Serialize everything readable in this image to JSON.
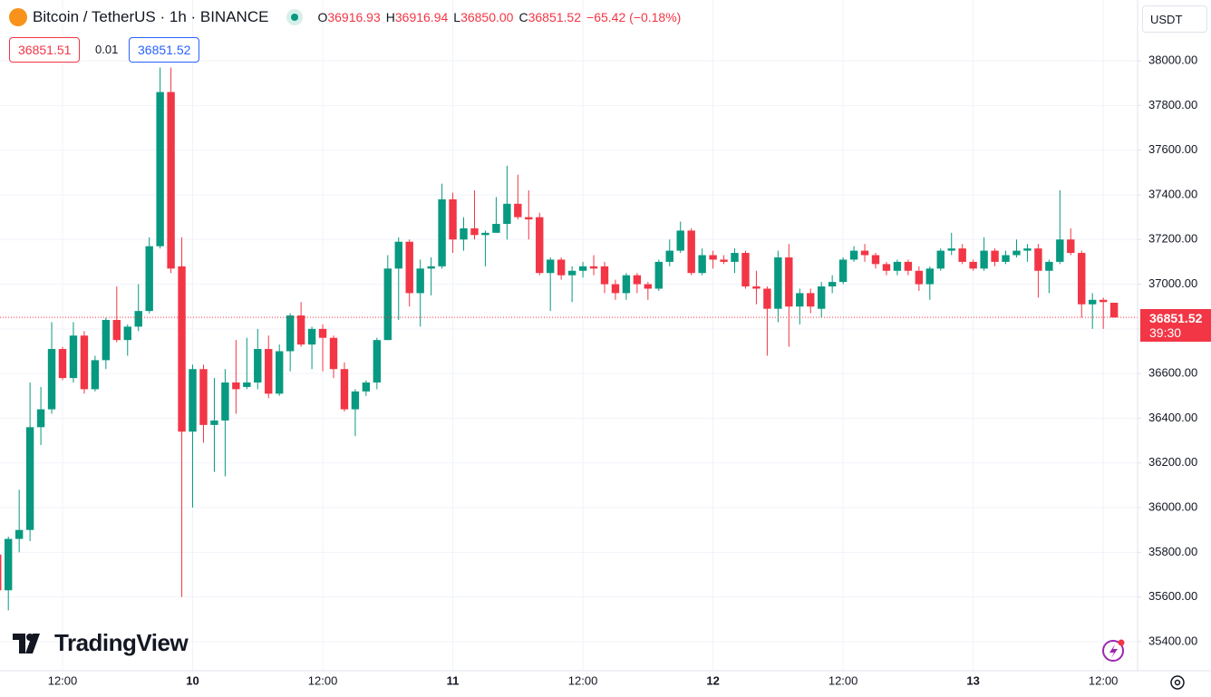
{
  "header": {
    "symbol": "Bitcoin / TetherUS · 1h · BINANCE",
    "ohlc": [
      {
        "key": "O",
        "value": "36916.93"
      },
      {
        "key": "H",
        "value": "36916.94"
      },
      {
        "key": "L",
        "value": "36850.00"
      },
      {
        "key": "C",
        "value": "36851.52"
      }
    ],
    "change": "−65.42 (−0.18%)"
  },
  "toolbar": {
    "sell": "36851.51",
    "spread": "0.01",
    "buy": "36851.52"
  },
  "currency": "USDT",
  "logo": "TradingView",
  "price_tag": {
    "price": "36851.52",
    "countdown": "39:30"
  },
  "chart_data": {
    "type": "candlestick",
    "up_color": "#089981",
    "down_color": "#f23645",
    "grid": true,
    "categories": [
      null,
      null,
      null,
      null,
      null,
      null,
      "12:00",
      null,
      null,
      null,
      null,
      null,
      null,
      null,
      null,
      null,
      null,
      null,
      "10",
      null,
      null,
      null,
      null,
      null,
      null,
      null,
      null,
      null,
      null,
      null,
      "12:00",
      null,
      null,
      null,
      null,
      null,
      null,
      null,
      null,
      null,
      null,
      null,
      "11",
      null,
      null,
      null,
      null,
      null,
      null,
      null,
      null,
      null,
      null,
      null,
      "12:00",
      null,
      null,
      null,
      null,
      null,
      null,
      null,
      null,
      null,
      null,
      null,
      "12",
      null,
      null,
      null,
      null,
      null,
      null,
      null,
      null,
      null,
      null,
      null,
      "12:00",
      null,
      null,
      null,
      null,
      null,
      null,
      null,
      null,
      null,
      null,
      null,
      "13",
      null,
      null,
      null,
      null,
      null,
      null,
      null,
      null,
      null,
      null,
      null,
      "12:00",
      null
    ],
    "open": [
      35790,
      35630,
      35860,
      35900,
      36360,
      36440,
      36710,
      36580,
      36770,
      36530,
      36660,
      36840,
      36750,
      36810,
      36880,
      37170,
      37860,
      37080,
      36340,
      36620,
      36370,
      36390,
      36560,
      36540,
      36560,
      36710,
      36510,
      36700,
      36860,
      36730,
      36800,
      36760,
      36620,
      36440,
      36520,
      36560,
      36750,
      37070,
      37190,
      36960,
      37070,
      37080,
      37380,
      37200,
      37250,
      37220,
      37230,
      37270,
      37360,
      37300,
      37300,
      37050,
      37110,
      37040,
      37060,
      37080,
      37080,
      37000,
      36960,
      37040,
      37000,
      36980,
      37100,
      37150,
      37240,
      37050,
      37130,
      37110,
      37100,
      37140,
      36990,
      36980,
      36890,
      37120,
      36900,
      36960,
      36890,
      36990,
      37010,
      37110,
      37150,
      37130,
      37090,
      37060,
      37100,
      37060,
      37000,
      37070,
      37150,
      37160,
      37100,
      37070,
      37150,
      37100,
      37130,
      37150,
      37160,
      37060,
      37100,
      37200,
      37140,
      36910,
      36930,
      36916.93
    ],
    "high": [
      35800,
      35870,
      36080,
      36560,
      36540,
      36830,
      36720,
      36830,
      36790,
      36680,
      36850,
      36990,
      36820,
      37000,
      37210,
      37970,
      37970,
      37210,
      36640,
      36640,
      36580,
      36620,
      36750,
      36760,
      36800,
      36770,
      36730,
      36870,
      36920,
      36810,
      36820,
      36770,
      36650,
      36530,
      36570,
      36760,
      37130,
      37210,
      37200,
      37110,
      37120,
      37450,
      37410,
      37300,
      37420,
      37240,
      37390,
      37530,
      37490,
      37420,
      37320,
      37120,
      37120,
      37080,
      37100,
      37130,
      37100,
      37020,
      37050,
      37050,
      37010,
      37110,
      37200,
      37280,
      37250,
      37160,
      37150,
      37130,
      37160,
      37150,
      37060,
      36990,
      37150,
      37180,
      36980,
      36980,
      37010,
      37040,
      37120,
      37170,
      37180,
      37140,
      37100,
      37110,
      37110,
      37080,
      37080,
      37160,
      37230,
      37180,
      37110,
      37210,
      37160,
      37150,
      37200,
      37180,
      37180,
      37110,
      37420,
      37250,
      37150,
      36960,
      36940,
      36916.94
    ],
    "low": [
      35600,
      35540,
      35800,
      35850,
      36280,
      36420,
      36570,
      36560,
      36510,
      36520,
      36620,
      36740,
      36680,
      36790,
      36870,
      37160,
      37050,
      35600,
      36000,
      36290,
      36160,
      36140,
      36420,
      36530,
      36530,
      36490,
      36500,
      36610,
      36720,
      36620,
      36610,
      36580,
      36430,
      36320,
      36500,
      36530,
      36750,
      36840,
      36900,
      36810,
      36950,
      37070,
      37140,
      37150,
      37200,
      37080,
      37230,
      37200,
      37290,
      37200,
      37040,
      36880,
      37020,
      36920,
      37030,
      37040,
      36960,
      36930,
      36930,
      36960,
      36930,
      36970,
      37080,
      37140,
      37040,
      37040,
      37070,
      37090,
      37050,
      36980,
      36910,
      36680,
      36830,
      36720,
      36820,
      36870,
      36850,
      36960,
      37000,
      37100,
      37100,
      37070,
      37040,
      37040,
      37040,
      36970,
      36930,
      37060,
      37130,
      37090,
      37060,
      37060,
      37080,
      37090,
      37120,
      37100,
      36940,
      36960,
      37090,
      37130,
      36850,
      36800,
      36800,
      36850
    ],
    "close": [
      35630,
      35860,
      35900,
      36360,
      36440,
      36710,
      36580,
      36770,
      36530,
      36660,
      36840,
      36750,
      36810,
      36880,
      37170,
      37860,
      37070,
      36340,
      36620,
      36370,
      36390,
      36560,
      36530,
      36560,
      36710,
      36510,
      36700,
      36860,
      36730,
      36800,
      36760,
      36620,
      36440,
      36520,
      36560,
      36750,
      37070,
      37190,
      36960,
      37070,
      37080,
      37380,
      37200,
      37250,
      37220,
      37230,
      37270,
      37360,
      37300,
      37290,
      37050,
      37110,
      37040,
      37060,
      37080,
      37070,
      37000,
      36960,
      37040,
      37000,
      36980,
      37100,
      37150,
      37240,
      37050,
      37130,
      37110,
      37100,
      37140,
      36990,
      36980,
      36890,
      37120,
      36900,
      36960,
      36900,
      36990,
      37010,
      37110,
      37150,
      37130,
      37090,
      37060,
      37100,
      37060,
      37000,
      37070,
      37150,
      37160,
      37100,
      37070,
      37150,
      37100,
      37130,
      37150,
      37160,
      37060,
      37100,
      37200,
      37140,
      36910,
      36930,
      36920,
      36851.52
    ],
    "ylim": [
      35270,
      38272
    ],
    "yticks": [
      {
        "value": 35400,
        "label": "35400.00"
      },
      {
        "value": 35600,
        "label": "35600.00"
      },
      {
        "value": 35800,
        "label": "35800.00"
      },
      {
        "value": 36000,
        "label": "36000.00"
      },
      {
        "value": 36200,
        "label": "36200.00"
      },
      {
        "value": 36400,
        "label": "36400.00"
      },
      {
        "value": 36600,
        "label": "36600.00"
      },
      {
        "value": 36800,
        "label": "36800.00"
      },
      {
        "value": 37000,
        "label": "37000.00"
      },
      {
        "value": 37200,
        "label": "37200.00"
      },
      {
        "value": 37400,
        "label": "37400.00"
      },
      {
        "value": 37600,
        "label": "37600.00"
      },
      {
        "value": 37800,
        "label": "37800.00"
      },
      {
        "value": 38000,
        "label": "38000.00"
      }
    ]
  }
}
